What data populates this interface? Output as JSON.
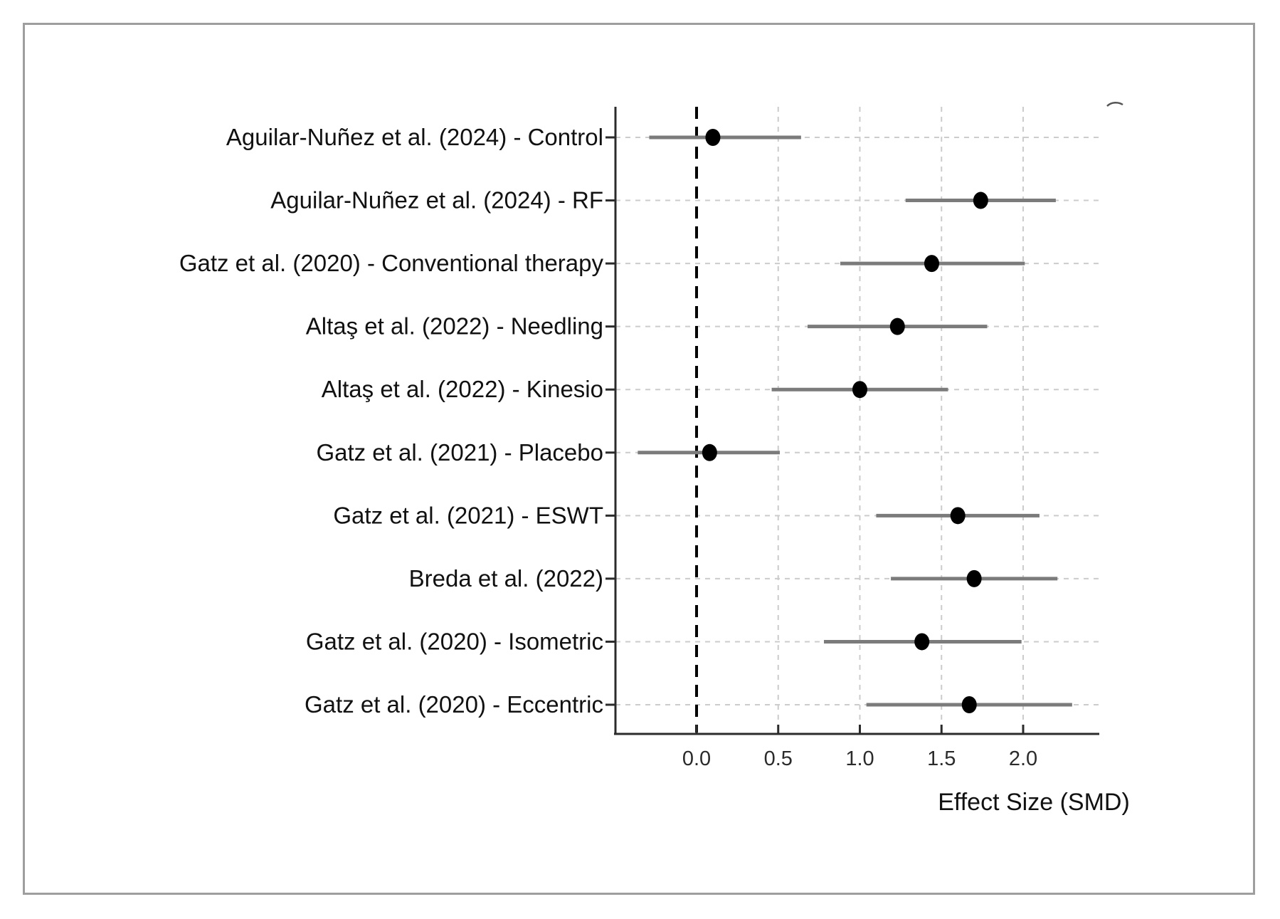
{
  "chart_data": {
    "type": "scatter",
    "subtype": "forest-plot",
    "title": "",
    "xlabel": "Effect Size (SMD)",
    "ylabel": "",
    "x_ticks": [
      "0.0",
      "0.5",
      "1.0",
      "1.5",
      "2.0"
    ],
    "x_tick_values": [
      0.0,
      0.5,
      1.0,
      1.5,
      2.0
    ],
    "xlim": [
      -0.5,
      2.47
    ],
    "grid": true,
    "reference_line_x": 0.0,
    "legend": "none",
    "point_color": "#000000",
    "ci_color": "#7b7b7b",
    "gridline_color": "#cccccc",
    "axis_color": "#2b2b2b",
    "studies": [
      {
        "label": "Aguilar-Nuñez et al. (2024) - Control",
        "effect": 0.1,
        "ci_low": -0.29,
        "ci_high": 0.64
      },
      {
        "label": "Aguilar-Nuñez et al. (2024) - RF",
        "effect": 1.74,
        "ci_low": 1.28,
        "ci_high": 2.2
      },
      {
        "label": "Gatz et al. (2020) - Conventional therapy",
        "effect": 1.44,
        "ci_low": 0.88,
        "ci_high": 2.01
      },
      {
        "label": "Altaş et al. (2022) - Needling",
        "effect": 1.23,
        "ci_low": 0.68,
        "ci_high": 1.78
      },
      {
        "label": "Altaş et al. (2022) - Kinesio",
        "effect": 1.0,
        "ci_low": 0.46,
        "ci_high": 1.54
      },
      {
        "label": "Gatz et al. (2021) - Placebo",
        "effect": 0.08,
        "ci_low": -0.36,
        "ci_high": 0.51
      },
      {
        "label": "Gatz et al. (2021) - ESWT",
        "effect": 1.6,
        "ci_low": 1.1,
        "ci_high": 2.1
      },
      {
        "label": "Breda et al. (2022)",
        "effect": 1.7,
        "ci_low": 1.19,
        "ci_high": 2.21
      },
      {
        "label": "Gatz et al. (2020) - Isometric",
        "effect": 1.38,
        "ci_low": 0.78,
        "ci_high": 1.99
      },
      {
        "label": "Gatz et al. (2020) - Eccentric",
        "effect": 1.67,
        "ci_low": 1.04,
        "ci_high": 2.3
      }
    ]
  }
}
